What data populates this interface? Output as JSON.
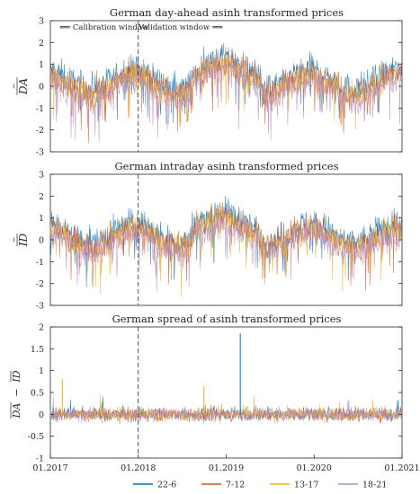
{
  "chart_data": [
    {
      "type": "line",
      "title": "German day-ahead asinh transformed prices",
      "ylabel": "DA (tilde, overline)",
      "ylabel_base": "DA",
      "ylim": [
        -3,
        3
      ],
      "yticks": [
        -3,
        -2,
        -1,
        0,
        1,
        2,
        3
      ],
      "xlim": [
        "2017-01-01",
        "2021-01-01"
      ],
      "annotations": {
        "divider_date": "2018-01-01",
        "calibration_label": "⟸ Calibration window",
        "validation_label": "Validation window ⟹"
      },
      "series_style": "noisy daily prices with seasonal cycle, range approx. -2.6 to 2.4",
      "series": [
        {
          "name": "22-6",
          "color": "#0072BD"
        },
        {
          "name": "7-12",
          "color": "#D95319"
        },
        {
          "name": "13-17",
          "color": "#EDB120"
        },
        {
          "name": "18-21",
          "color": "#B58BC7"
        }
      ]
    },
    {
      "type": "line",
      "title": "German intraday asinh transformed prices",
      "ylabel": "ID (tilde, overline)",
      "ylabel_base": "ID",
      "ylim": [
        -3,
        3
      ],
      "yticks": [
        -3,
        -2,
        -1,
        0,
        1,
        2,
        3
      ],
      "xlim": [
        "2017-01-01",
        "2021-01-01"
      ],
      "annotations": {
        "divider_date": "2018-01-01"
      },
      "series": [
        {
          "name": "22-6",
          "color": "#0072BD"
        },
        {
          "name": "7-12",
          "color": "#D95319"
        },
        {
          "name": "13-17",
          "color": "#EDB120"
        },
        {
          "name": "18-21",
          "color": "#B58BC7"
        }
      ]
    },
    {
      "type": "line",
      "title": "German spread of asinh transformed prices",
      "ylabel": "DA − ID (tilde, overline)",
      "ylabel_left": "DA",
      "ylabel_minus": " − ",
      "ylabel_right": "ID",
      "ylim": [
        -1,
        2
      ],
      "yticks": [
        -1,
        -0.5,
        0,
        0.5,
        1,
        1.5,
        2
      ],
      "xlim": [
        "2017-01-01",
        "2021-01-01"
      ],
      "xticks": [
        "01.2017",
        "01.2018",
        "01.2019",
        "01.2020",
        "01.2021"
      ],
      "annotations": {
        "divider_date": "2018-01-01"
      },
      "peaks": [
        {
          "date": "2019-03-01",
          "value": 1.85
        },
        {
          "date": "2017-02-20",
          "value": 0.8
        },
        {
          "date": "2018-10-01",
          "value": 0.65
        }
      ],
      "series": [
        {
          "name": "22-6",
          "color": "#0072BD"
        },
        {
          "name": "7-12",
          "color": "#D95319"
        },
        {
          "name": "13-17",
          "color": "#EDB120"
        },
        {
          "name": "18-21",
          "color": "#B58BC7"
        }
      ]
    }
  ],
  "legend": {
    "position": "bottom",
    "entries": [
      {
        "label": "22-6",
        "color": "#0072BD"
      },
      {
        "label": "7-12",
        "color": "#D95319"
      },
      {
        "label": "13-17",
        "color": "#EDB120"
      },
      {
        "label": "18-21",
        "color": "#B58BC7"
      }
    ]
  }
}
